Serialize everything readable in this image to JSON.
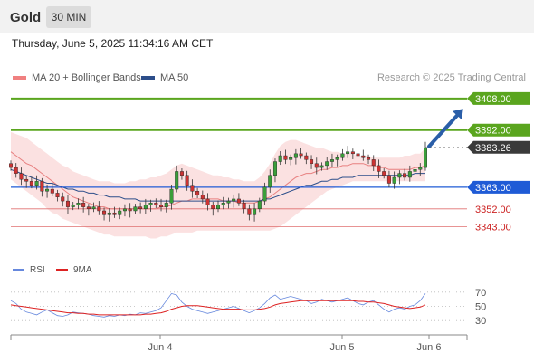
{
  "header": {
    "title": "Gold",
    "timeframe": "30 MIN"
  },
  "datetime": "Thursday, June 5, 2025 11:34:16 AM CET",
  "legend": {
    "bb_label": "MA 20 + Bollinger Bands",
    "ma50_label": "MA 50"
  },
  "credit": "Research © 2025 Trading Central",
  "rsi_legend": {
    "rsi_label": "RSI",
    "ma_label": "9MA"
  },
  "colors": {
    "up": "#3a9e3a",
    "down": "#cc3333",
    "bb_fill": "#f7c9c9",
    "bb_line": "#e88080",
    "ma50": "#2c4e8a",
    "resistance": "#5aa51e",
    "support": "#1f5bd6",
    "pivot": "#e07070",
    "arrow": "#2a5ea8",
    "rsi": "#6688dd",
    "rsi_ma": "#dd2222"
  },
  "chart_data": [
    {
      "type": "candlestick",
      "title": "Gold",
      "timeframe": "30 MIN",
      "x_ticks": [
        "Jun 4",
        "Jun 5",
        "Jun 6"
      ],
      "ylim": [
        3334,
        3413
      ],
      "levels": [
        {
          "label": "3408.00",
          "value": 3408.0,
          "kind": "resistance"
        },
        {
          "label": "3392.00",
          "value": 3392.0,
          "kind": "resistance"
        },
        {
          "label": "3383.26",
          "value": 3383.26,
          "kind": "last"
        },
        {
          "label": "3363.00",
          "value": 3363.0,
          "kind": "support"
        },
        {
          "label": "3352.00",
          "value": 3352.0,
          "kind": "minor_support"
        },
        {
          "label": "3343.00",
          "value": 3343.0,
          "kind": "minor_support"
        }
      ],
      "projection": {
        "from": 3383.26,
        "to": 3404.0,
        "direction": "up"
      },
      "closes": [
        3373,
        3370,
        3367,
        3366,
        3364,
        3366,
        3361,
        3362,
        3360,
        3358,
        3356,
        3353,
        3354,
        3355,
        3353,
        3352,
        3353,
        3351,
        3349,
        3350,
        3349,
        3351,
        3352,
        3351,
        3353,
        3352,
        3354,
        3355,
        3354,
        3353,
        3355,
        3362,
        3371,
        3369,
        3364,
        3361,
        3359,
        3357,
        3354,
        3352,
        3354,
        3355,
        3356,
        3357,
        3355,
        3352,
        3349,
        3352,
        3356,
        3363,
        3369,
        3376,
        3379,
        3377,
        3378,
        3380,
        3379,
        3377,
        3375,
        3373,
        3374,
        3376,
        3377,
        3378,
        3380,
        3381,
        3380,
        3379,
        3378,
        3377,
        3374,
        3371,
        3369,
        3365,
        3368,
        3370,
        3368,
        3371,
        3372,
        3373,
        3383
      ],
      "ma20": [
        3381,
        3379,
        3377,
        3375,
        3374,
        3372,
        3370,
        3368,
        3366,
        3364,
        3362,
        3360,
        3358,
        3357,
        3356,
        3355,
        3354,
        3353,
        3353,
        3352,
        3352,
        3352,
        3352,
        3352,
        3352,
        3352,
        3352,
        3352,
        3352,
        3353,
        3353,
        3354,
        3355,
        3356,
        3356,
        3357,
        3357,
        3357,
        3357,
        3357,
        3357,
        3356,
        3356,
        3356,
        3355,
        3355,
        3355,
        3355,
        3356,
        3357,
        3358,
        3360,
        3362,
        3364,
        3366,
        3368,
        3369,
        3370,
        3370,
        3371,
        3372,
        3372,
        3373,
        3373,
        3374,
        3374,
        3375,
        3375,
        3375,
        3374,
        3374,
        3373,
        3373,
        3372,
        3372,
        3372,
        3372,
        3372,
        3373,
        3373,
        3374
      ],
      "bb_upper": [
        3391,
        3390,
        3389,
        3388,
        3386,
        3384,
        3382,
        3380,
        3378,
        3376,
        3374,
        3373,
        3371,
        3370,
        3369,
        3368,
        3367,
        3366,
        3366,
        3366,
        3365,
        3365,
        3365,
        3366,
        3366,
        3367,
        3367,
        3368,
        3368,
        3369,
        3370,
        3372,
        3374,
        3375,
        3374,
        3373,
        3372,
        3371,
        3370,
        3369,
        3369,
        3368,
        3368,
        3367,
        3367,
        3366,
        3366,
        3366,
        3368,
        3371,
        3375,
        3380,
        3384,
        3386,
        3387,
        3387,
        3386,
        3385,
        3384,
        3383,
        3383,
        3382,
        3381,
        3381,
        3380,
        3380,
        3380,
        3379,
        3379,
        3379,
        3378,
        3378,
        3378,
        3378,
        3378,
        3378,
        3379,
        3379,
        3380,
        3380,
        3383
      ],
      "bb_lower": [
        3367,
        3365,
        3363,
        3361,
        3359,
        3357,
        3355,
        3352,
        3350,
        3349,
        3347,
        3346,
        3345,
        3344,
        3343,
        3342,
        3341,
        3340,
        3339,
        3339,
        3338,
        3338,
        3338,
        3338,
        3338,
        3338,
        3338,
        3337,
        3337,
        3338,
        3338,
        3339,
        3340,
        3340,
        3340,
        3340,
        3341,
        3341,
        3341,
        3341,
        3341,
        3341,
        3341,
        3341,
        3341,
        3341,
        3341,
        3341,
        3341,
        3341,
        3341,
        3342,
        3343,
        3345,
        3347,
        3349,
        3351,
        3353,
        3355,
        3357,
        3359,
        3361,
        3362,
        3363,
        3364,
        3365,
        3366,
        3366,
        3366,
        3366,
        3366,
        3366,
        3366,
        3366,
        3366,
        3366,
        3366,
        3366,
        3366,
        3366,
        3366
      ],
      "ma50": [
        3372,
        3371,
        3370,
        3369,
        3368,
        3367,
        3366,
        3365,
        3365,
        3364,
        3363,
        3362,
        3362,
        3361,
        3361,
        3360,
        3360,
        3359,
        3359,
        3358,
        3358,
        3358,
        3357,
        3357,
        3357,
        3356,
        3356,
        3356,
        3356,
        3356,
        3356,
        3356,
        3356,
        3356,
        3356,
        3356,
        3356,
        3356,
        3356,
        3356,
        3356,
        3356,
        3356,
        3356,
        3356,
        3356,
        3356,
        3356,
        3356,
        3357,
        3357,
        3358,
        3359,
        3360,
        3361,
        3362,
        3363,
        3364,
        3364,
        3365,
        3366,
        3366,
        3367,
        3367,
        3368,
        3368,
        3368,
        3369,
        3369,
        3369,
        3369,
        3369,
        3369,
        3369,
        3369,
        3369,
        3369,
        3369,
        3370,
        3370,
        3370
      ]
    },
    {
      "type": "line",
      "title": "RSI",
      "ylim": [
        20,
        80
      ],
      "y_ticks": [
        70,
        50,
        30
      ],
      "series": [
        {
          "name": "RSI",
          "values": [
            58,
            54,
            46,
            42,
            40,
            38,
            42,
            45,
            41,
            37,
            36,
            38,
            42,
            41,
            40,
            39,
            37,
            36,
            35,
            37,
            36,
            38,
            37,
            39,
            38,
            41,
            40,
            42,
            44,
            48,
            58,
            68,
            66,
            56,
            50,
            46,
            44,
            42,
            40,
            42,
            44,
            46,
            48,
            50,
            47,
            44,
            41,
            44,
            48,
            54,
            62,
            66,
            60,
            62,
            64,
            62,
            60,
            58,
            54,
            56,
            60,
            58,
            56,
            58,
            60,
            62,
            58,
            54,
            52,
            56,
            58,
            52,
            46,
            42,
            46,
            48,
            46,
            50,
            52,
            58,
            68
          ]
        },
        {
          "name": "9MA",
          "values": [
            52,
            51,
            50,
            49,
            48,
            47,
            46,
            45,
            44,
            43,
            42,
            41,
            41,
            40,
            40,
            39,
            39,
            38,
            38,
            38,
            38,
            38,
            38,
            38,
            38,
            38,
            39,
            39,
            40,
            41,
            43,
            46,
            48,
            50,
            51,
            51,
            51,
            50,
            49,
            48,
            47,
            46,
            46,
            46,
            46,
            45,
            45,
            45,
            46,
            47,
            49,
            52,
            54,
            55,
            56,
            57,
            58,
            58,
            58,
            58,
            58,
            58,
            58,
            58,
            58,
            58,
            58,
            57,
            57,
            56,
            56,
            55,
            54,
            52,
            50,
            49,
            48,
            47,
            48,
            49,
            52
          ]
        }
      ]
    }
  ]
}
